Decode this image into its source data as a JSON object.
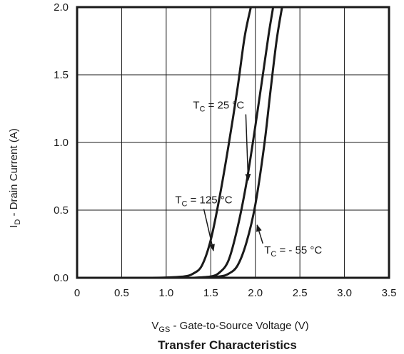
{
  "chart_data": {
    "type": "line",
    "title": "Transfer Characteristics",
    "xlabel": {
      "main": "V",
      "sub": "GS",
      "rest": " - Gate-to-Source Voltage (V)"
    },
    "ylabel": {
      "main": "I",
      "sub": "D",
      "rest": " - Drain Current (A)"
    },
    "xlim": [
      0,
      3.5
    ],
    "ylim": [
      0,
      2.0
    ],
    "x_ticks": [
      0,
      0.5,
      1.0,
      1.5,
      2.0,
      2.5,
      3.0,
      3.5
    ],
    "x_tick_labels": [
      "0",
      "0.5",
      "1.0",
      "1.5",
      "2.0",
      "2.5",
      "3.0",
      "3.5"
    ],
    "y_ticks": [
      0,
      0.5,
      1.0,
      1.5,
      2.0
    ],
    "y_tick_labels": [
      "0.0",
      "0.5",
      "1.0",
      "1.5",
      "2.0"
    ],
    "grid": true,
    "series": [
      {
        "key": "tc125",
        "label": {
          "main": "T",
          "sub": "C",
          "rest": " = 125 °C"
        },
        "x": [
          0.8,
          1.0,
          1.2,
          1.3,
          1.4,
          1.5,
          1.6,
          1.7,
          1.8,
          1.88,
          1.95
        ],
        "y": [
          0.0,
          0.002,
          0.01,
          0.03,
          0.09,
          0.28,
          0.6,
          0.98,
          1.4,
          1.78,
          2.0
        ]
      },
      {
        "key": "tc25",
        "label": {
          "main": "T",
          "sub": "C",
          "rest": " = 25 °C"
        },
        "x": [
          1.3,
          1.5,
          1.6,
          1.7,
          1.8,
          1.9,
          2.0,
          2.08,
          2.15,
          2.2
        ],
        "y": [
          0.0,
          0.01,
          0.04,
          0.13,
          0.37,
          0.7,
          1.12,
          1.48,
          1.8,
          2.0
        ]
      },
      {
        "key": "tcm55",
        "label": {
          "main": "T",
          "sub": "C",
          "rest": " = - 55 °C"
        },
        "x": [
          1.4,
          1.6,
          1.7,
          1.8,
          1.9,
          2.0,
          2.1,
          2.17,
          2.24,
          2.3
        ],
        "y": [
          0.0,
          0.01,
          0.03,
          0.09,
          0.26,
          0.54,
          0.98,
          1.38,
          1.76,
          2.0
        ]
      }
    ],
    "annotations": [
      {
        "series": "tc25",
        "text_x": 1.3,
        "text_y": 1.25,
        "arrow_to_x": 1.92,
        "arrow_to_y": 0.72
      },
      {
        "series": "tc125",
        "text_x": 1.1,
        "text_y": 0.55,
        "arrow_to_x": 1.53,
        "arrow_to_y": 0.2
      },
      {
        "series": "tcm55",
        "text_x": 2.1,
        "text_y": 0.18,
        "arrow_to_x": 2.02,
        "arrow_to_y": 0.39
      }
    ]
  }
}
